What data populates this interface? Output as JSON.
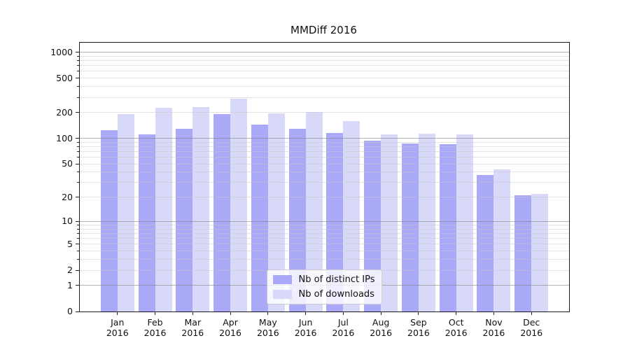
{
  "title": "MMDiff 2016",
  "colors": {
    "distinct_ips": "#a9a9f7",
    "downloads": "#d8d8f8",
    "major_gridline": "rgba(130,130,130,0.6)",
    "minor_gridline": "rgba(200,200,200,0.5)"
  },
  "y_axis": {
    "tick_labels": [
      "0",
      "1",
      "2",
      "5",
      "10",
      "20",
      "50",
      "100",
      "200",
      "500",
      "1000"
    ]
  },
  "legend": {
    "entries": [
      "Nb of distinct IPs",
      "Nb of downloads"
    ]
  },
  "chart_data": {
    "type": "bar",
    "title": "MMDiff 2016",
    "categories": [
      "Jan 2016",
      "Feb 2016",
      "Mar 2016",
      "Apr 2016",
      "May 2016",
      "Jun 2016",
      "Jul 2016",
      "Aug 2016",
      "Sep 2016",
      "Oct 2016",
      "Nov 2016",
      "Dec 2016"
    ],
    "series": [
      {
        "name": "Nb of distinct IPs",
        "color_key": "distinct_ips",
        "values": [
          124,
          112,
          130,
          190,
          144,
          128,
          115,
          93,
          87,
          85,
          37,
          21
        ]
      },
      {
        "name": "Nb of downloads",
        "color_key": "downloads",
        "values": [
          190,
          227,
          230,
          292,
          195,
          203,
          160,
          111,
          113,
          111,
          43,
          22
        ]
      }
    ],
    "yscale": "log10(value+1)",
    "ylim": [
      0,
      1280
    ],
    "y_ticks": [
      0,
      1,
      2,
      5,
      10,
      20,
      50,
      100,
      200,
      500,
      1000
    ],
    "y_minor_ticks": [
      3,
      4,
      6,
      7,
      8,
      9,
      30,
      40,
      60,
      70,
      80,
      90,
      300,
      400,
      600,
      700,
      800,
      900
    ],
    "grid": "on",
    "legend_position": "lower center"
  }
}
